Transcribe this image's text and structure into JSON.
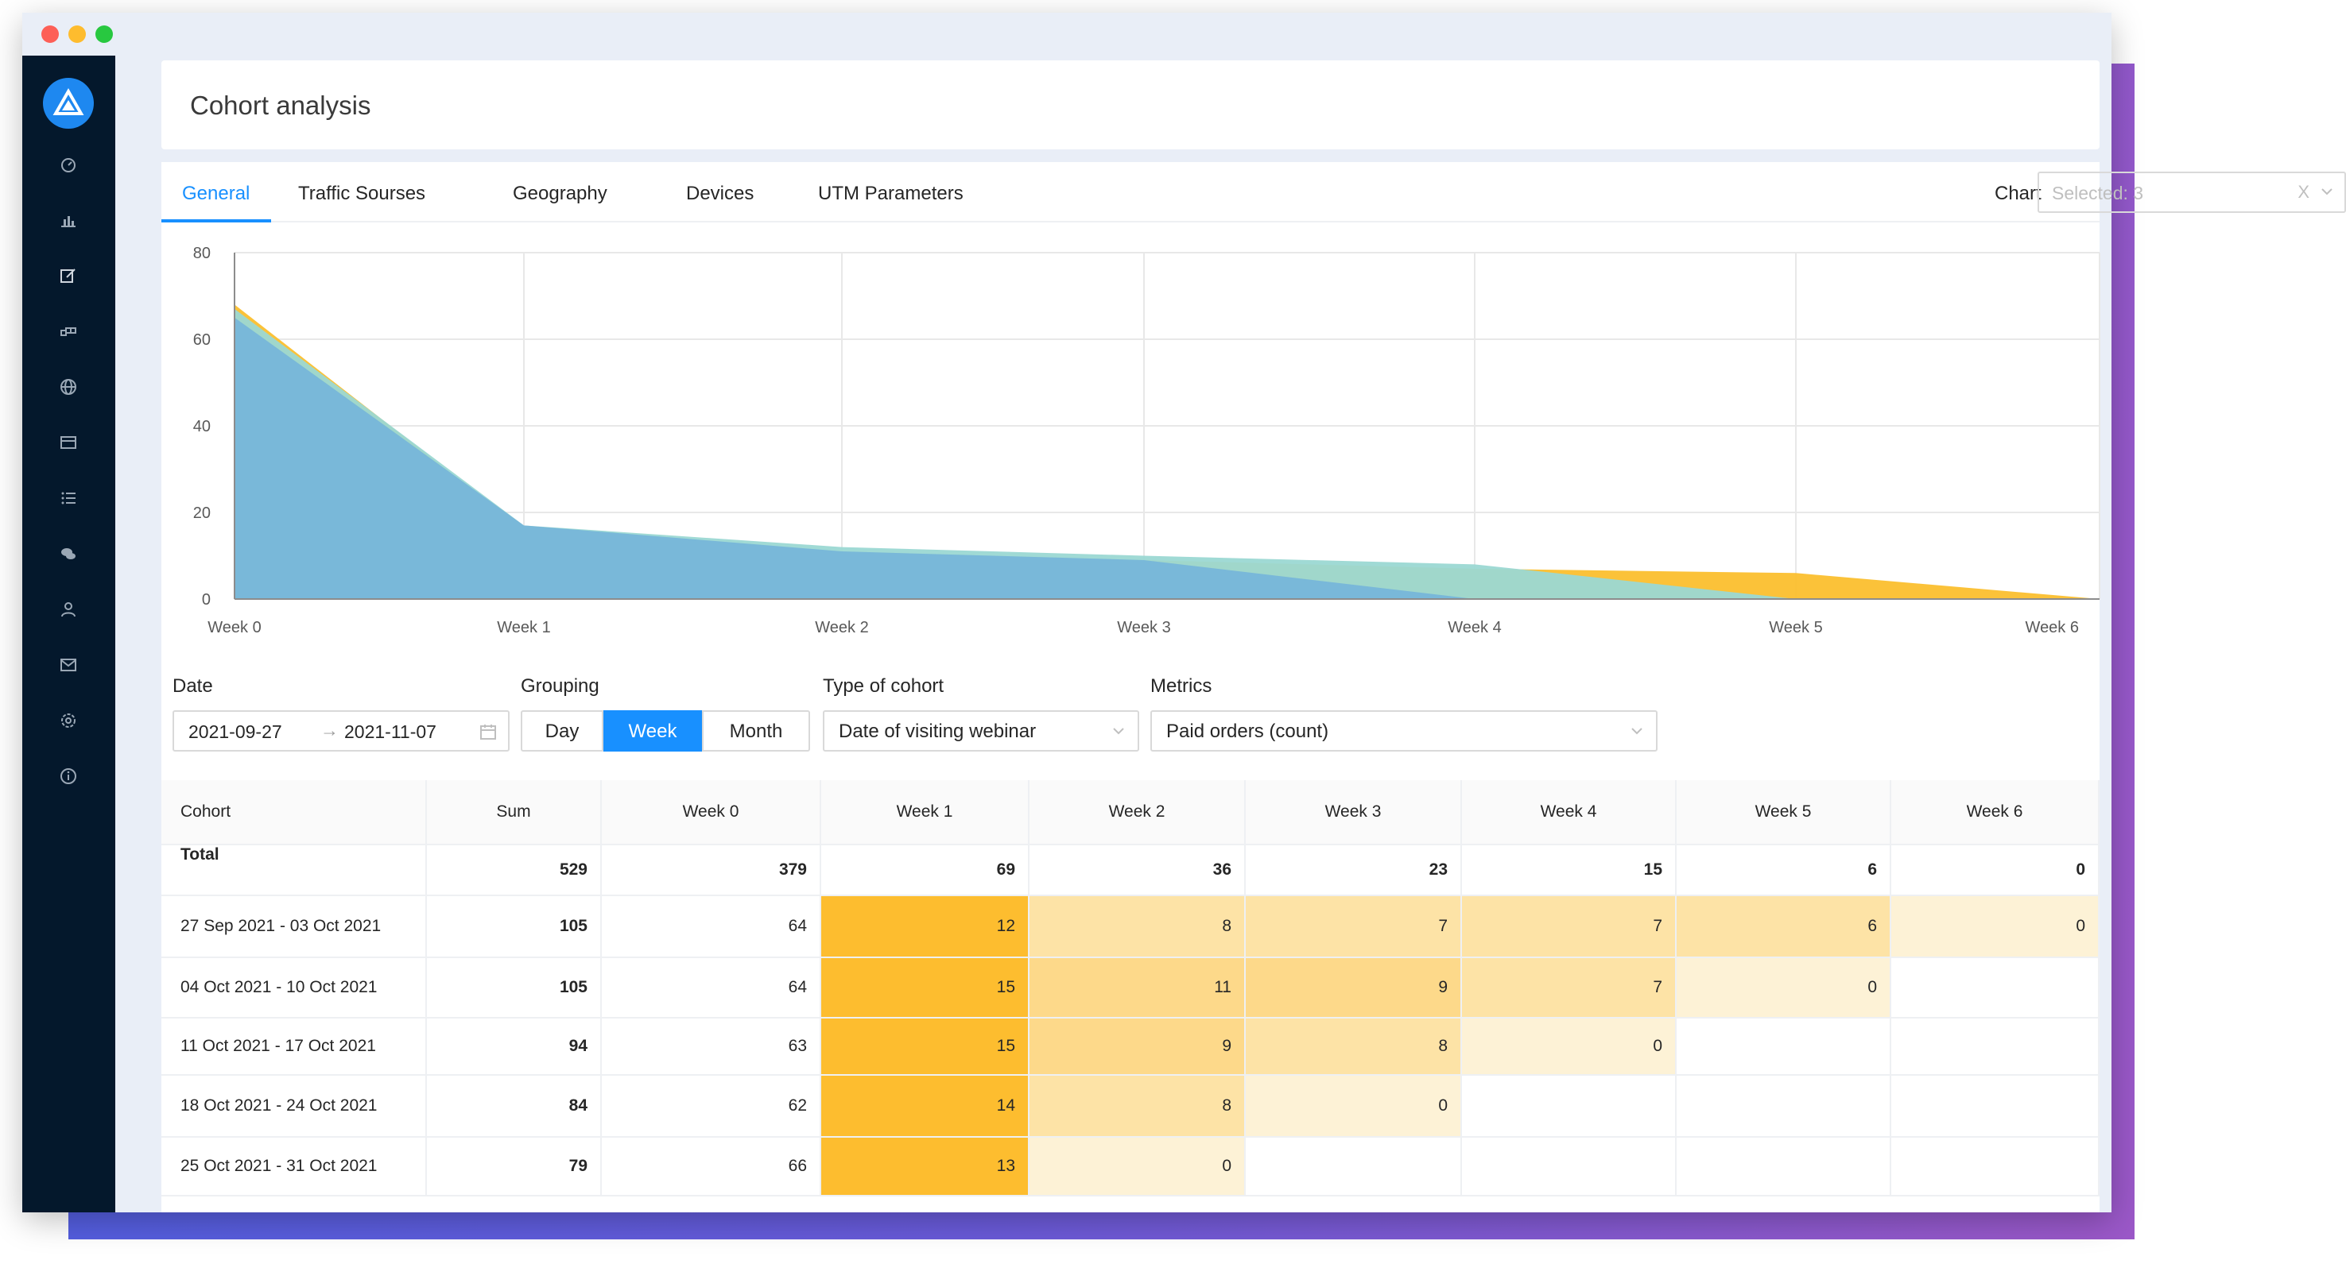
{
  "page": {
    "title": "Cohort analysis"
  },
  "sidebar": {
    "logo_icon": "triangle-logo",
    "items": [
      {
        "icon": "dashboard-icon"
      },
      {
        "icon": "bar-chart-icon"
      },
      {
        "icon": "edit-icon"
      },
      {
        "icon": "blocks-icon"
      },
      {
        "icon": "globe-icon"
      },
      {
        "icon": "credit-card-icon"
      },
      {
        "icon": "list-icon"
      },
      {
        "icon": "chat-icon"
      },
      {
        "icon": "user-icon"
      },
      {
        "icon": "mail-icon"
      },
      {
        "icon": "settings-icon"
      },
      {
        "icon": "info-icon"
      }
    ]
  },
  "tabs": [
    {
      "label": "General",
      "active": true
    },
    {
      "label": "Traffic Sourses",
      "active": false
    },
    {
      "label": "Geography",
      "active": false
    },
    {
      "label": "Devices",
      "active": false
    },
    {
      "label": "UTM Parameters",
      "active": false
    }
  ],
  "chart_control": {
    "label": "Chart",
    "placeholder": "Selected: 3",
    "clear": "X"
  },
  "chart_data": {
    "type": "area",
    "categories": [
      "Week 0",
      "Week 1",
      "Week 2",
      "Week 3",
      "Week 4",
      "Week 5",
      "Week 6"
    ],
    "ylim": [
      0,
      80
    ],
    "yticks": [
      "0",
      "20",
      "40",
      "60",
      "80"
    ],
    "grid": true,
    "series": [
      {
        "color": "#fbbf2e",
        "values": [
          68,
          16,
          11,
          9,
          7,
          6,
          0
        ]
      },
      {
        "color": "#9bd8d3",
        "values": [
          67,
          17,
          12,
          10,
          8,
          0,
          0
        ]
      },
      {
        "color": "#77b6d9",
        "values": [
          65,
          17,
          11,
          9,
          0,
          0,
          0
        ]
      }
    ]
  },
  "filters": {
    "date_label": "Date",
    "date_from": "2021-09-27",
    "date_to": "2021-11-07",
    "grouping_label": "Grouping",
    "grouping_options": [
      "Day",
      "Week",
      "Month"
    ],
    "grouping_selected": "Week",
    "cohort_type_label": "Type of cohort",
    "cohort_type_value": "Date of visiting webinar",
    "metrics_label": "Metrics",
    "metrics_value": "Paid orders (count)"
  },
  "table": {
    "headers": [
      "Cohort",
      "Sum",
      "Week 0",
      "Week 1",
      "Week 2",
      "Week 3",
      "Week 4",
      "Week 5",
      "Week 6"
    ],
    "total": {
      "label": "Total",
      "values": [
        "529",
        "379",
        "69",
        "36",
        "23",
        "15",
        "6",
        "0"
      ]
    },
    "rows": [
      {
        "cohort": "27 Sep 2021 - 03 Oct 2021",
        "sum": "105",
        "weeks": [
          "64",
          "12",
          "8",
          "7",
          "7",
          "6",
          "0"
        ]
      },
      {
        "cohort": "04 Oct 2021 - 10 Oct 2021",
        "sum": "105",
        "weeks": [
          "64",
          "15",
          "11",
          "9",
          "7",
          "0",
          ""
        ]
      },
      {
        "cohort": "11 Oct 2021 - 17 Oct 2021",
        "sum": "94",
        "weeks": [
          "63",
          "15",
          "9",
          "8",
          "0",
          "",
          ""
        ]
      },
      {
        "cohort": "18 Oct 2021 - 24 Oct 2021",
        "sum": "84",
        "weeks": [
          "62",
          "14",
          "8",
          "0",
          "",
          "",
          ""
        ]
      },
      {
        "cohort": "25 Oct 2021 - 31 Oct 2021",
        "sum": "79",
        "weeks": [
          "66",
          "13",
          "0",
          "",
          "",
          "",
          ""
        ]
      }
    ],
    "heat_colors": [
      "#fdf2d6",
      "#fde3a6",
      "#fdd98a",
      "#fdbd2f"
    ]
  }
}
